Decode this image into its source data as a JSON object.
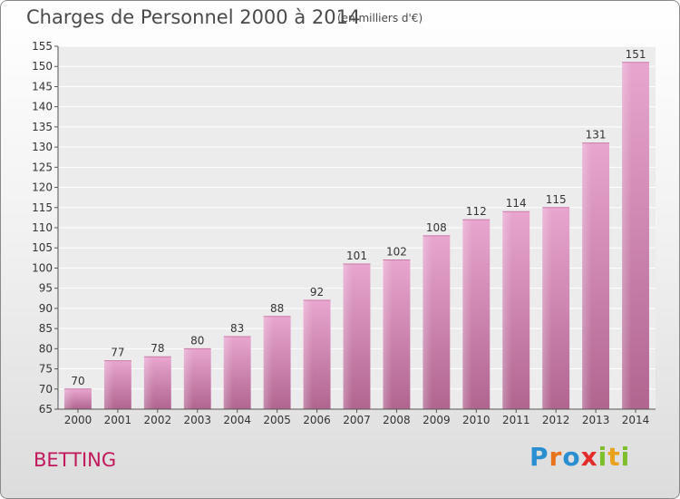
{
  "chart_data": {
    "type": "bar",
    "title": "Charges de Personnel 2000 à 2014",
    "subtitle": "(en milliers d'€)",
    "categories": [
      "2000",
      "2001",
      "2002",
      "2003",
      "2004",
      "2005",
      "2006",
      "2007",
      "2008",
      "2009",
      "2010",
      "2011",
      "2012",
      "2013",
      "2014"
    ],
    "values": [
      70,
      77,
      78,
      80,
      83,
      88,
      92,
      101,
      102,
      108,
      112,
      114,
      115,
      131,
      151
    ],
    "ylim": [
      65,
      155
    ],
    "yticks": [
      65,
      70,
      75,
      80,
      85,
      90,
      95,
      100,
      105,
      110,
      115,
      120,
      125,
      130,
      135,
      140,
      145,
      150,
      155
    ],
    "grid": true,
    "bar_color": "#d98ab8"
  },
  "footer": {
    "location": "BETTING",
    "logo_letters": [
      {
        "ch": "P",
        "color": "#2a8fd0"
      },
      {
        "ch": "r",
        "color": "#e8731c"
      },
      {
        "ch": "o",
        "color": "#2a8fd0"
      },
      {
        "ch": "x",
        "color": "#e62b2b"
      },
      {
        "ch": "i",
        "color": "#7cbf2a"
      },
      {
        "ch": "t",
        "color": "#e8a21c"
      },
      {
        "ch": "i",
        "color": "#7cbf2a"
      }
    ]
  }
}
